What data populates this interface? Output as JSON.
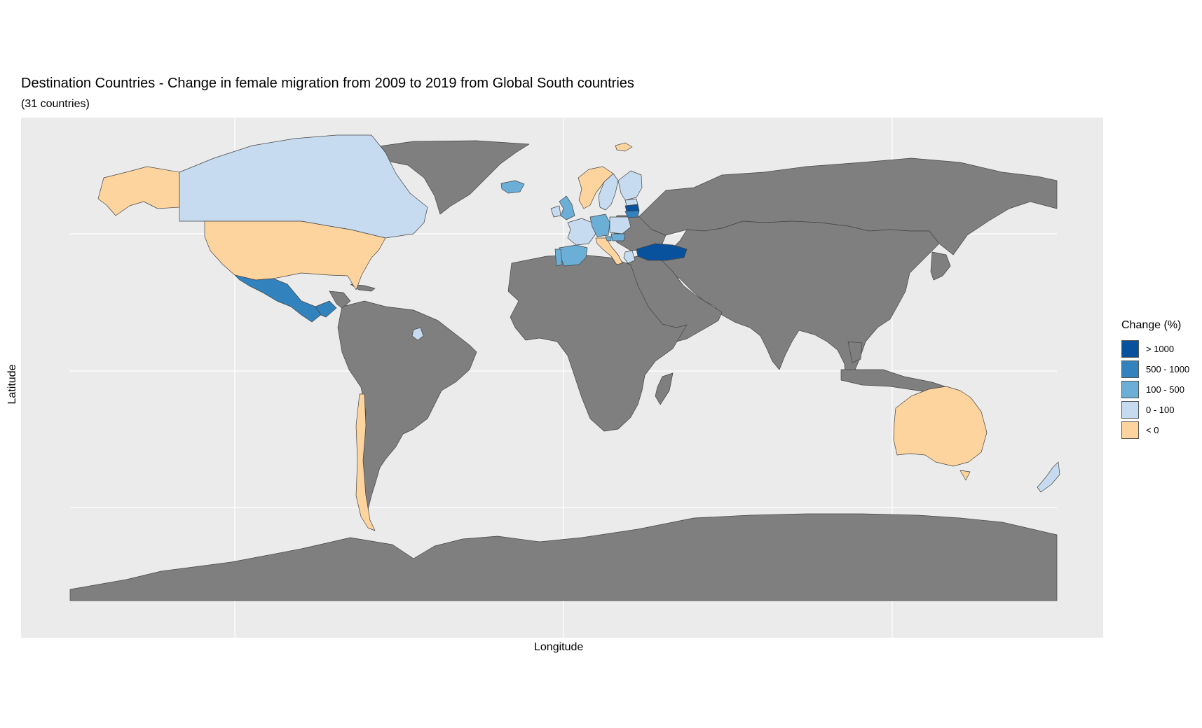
{
  "chart_data": {
    "type": "choropleth",
    "title": "Destination Countries - Change in female migration from 2009 to 2019 from Global South countries",
    "subtitle": "(31 countries)",
    "xlabel": "Longitude",
    "ylabel": "Latitude",
    "grid": true,
    "legend_position": "right",
    "legend": {
      "title": "Change (%)",
      "items": [
        {
          "label": "> 1000",
          "color": "#08519c"
        },
        {
          "label": "500 - 1000",
          "color": "#3182bd"
        },
        {
          "label": "100 - 500",
          "color": "#6baed6"
        },
        {
          "label": "0 - 100",
          "color": "#c6dbef"
        },
        {
          "label": "< 0",
          "color": "#fdd49e"
        }
      ]
    },
    "no_data_color": "#7f7f7f",
    "panel_color": "#ebebeb",
    "highlighted_countries": [
      {
        "name": "Alaska (United States)",
        "category": "< 0"
      },
      {
        "name": "United States",
        "category": "< 0"
      },
      {
        "name": "Canada",
        "category": "0 - 100"
      },
      {
        "name": "Mexico",
        "category": "500 - 1000"
      },
      {
        "name": "Guatemala",
        "category": "500 - 1000"
      },
      {
        "name": "Suriname",
        "category": "0 - 100"
      },
      {
        "name": "Chile",
        "category": "< 0"
      },
      {
        "name": "Iceland",
        "category": "100 - 500"
      },
      {
        "name": "Norway",
        "category": "< 0"
      },
      {
        "name": "Sweden",
        "category": "0 - 100"
      },
      {
        "name": "Finland",
        "category": "0 - 100"
      },
      {
        "name": "Estonia",
        "category": "0 - 100"
      },
      {
        "name": "Latvia",
        "category": "> 1000"
      },
      {
        "name": "Lithuania",
        "category": "500 - 1000"
      },
      {
        "name": "United Kingdom",
        "category": "100 - 500"
      },
      {
        "name": "Ireland",
        "category": "0 - 100"
      },
      {
        "name": "France",
        "category": "0 - 100"
      },
      {
        "name": "Spain",
        "category": "100 - 500"
      },
      {
        "name": "Portugal",
        "category": "0 - 100"
      },
      {
        "name": "Germany",
        "category": "100 - 500"
      },
      {
        "name": "Poland",
        "category": "0 - 100"
      },
      {
        "name": "Italy",
        "category": "< 0"
      },
      {
        "name": "Slovenia",
        "category": "100 - 500"
      },
      {
        "name": "Hungary",
        "category": "100 - 500"
      },
      {
        "name": "Turkey",
        "category": "> 1000"
      },
      {
        "name": "Greece",
        "category": "0 - 100"
      },
      {
        "name": "Svalbard",
        "category": "< 0"
      },
      {
        "name": "Australia",
        "category": "< 0"
      },
      {
        "name": "New Zealand",
        "category": "0 - 100"
      }
    ]
  }
}
